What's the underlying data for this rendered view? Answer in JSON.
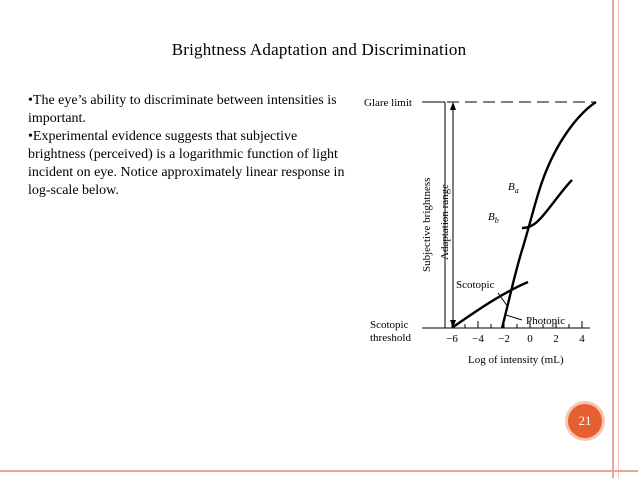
{
  "slide": {
    "title": "Brightness Adaptation and Discrimination",
    "bullets": [
      "•The eye’s ability to discriminate between intensities is important.",
      "•Experimental evidence suggests that subjective brightness (perceived) is a logarithmic function of light incident on eye. Notice approximately linear response in log-scale below."
    ],
    "page_number": "21"
  },
  "figure": {
    "glare_limit": "Glare limit",
    "y_label": "Subjective brightness",
    "adaptation_range": "Adaptation range",
    "ba_label": "B",
    "ba_sub": "a",
    "bb_label": "B",
    "bb_sub": "b",
    "scotopic": "Scotopic",
    "photopic": "Photopic",
    "scotopic_threshold_1": "Scotopic",
    "scotopic_threshold_2": "threshold",
    "x_ticks": [
      "−6",
      "−4",
      "−2",
      "0",
      "2",
      "4"
    ],
    "x_label": "Log of intensity (mL)"
  }
}
